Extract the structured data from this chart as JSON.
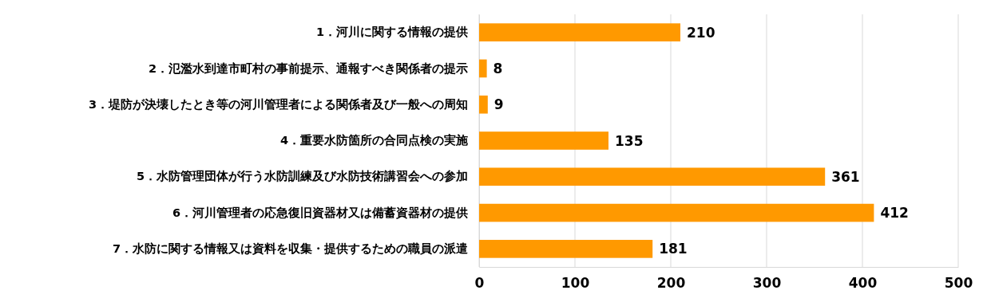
{
  "chart_data": {
    "type": "bar",
    "orientation": "horizontal",
    "categories": [
      "1．河川に関する情報の提供",
      "2．氾濫水到達市町村の事前提示、通報すべき関係者の提示",
      "3．堤防が決壊したとき等の河川管理者による関係者及び一般への周知",
      "4．重要水防箇所の合同点検の実施",
      "5．水防管理団体が行う水防訓練及び水防技術講習会への参加",
      "6．河川管理者の応急復旧資器材又は備蓄資器材の提供",
      "7．水防に関する情報又は資料を収集・提供するための職員の派遣"
    ],
    "values": [
      210,
      8,
      9,
      135,
      361,
      412,
      181
    ],
    "color": "#ff9900",
    "xlim": [
      0,
      500
    ],
    "xticks": [
      0,
      100,
      200,
      300,
      400,
      500
    ],
    "grid": "x",
    "data_labels": true
  }
}
